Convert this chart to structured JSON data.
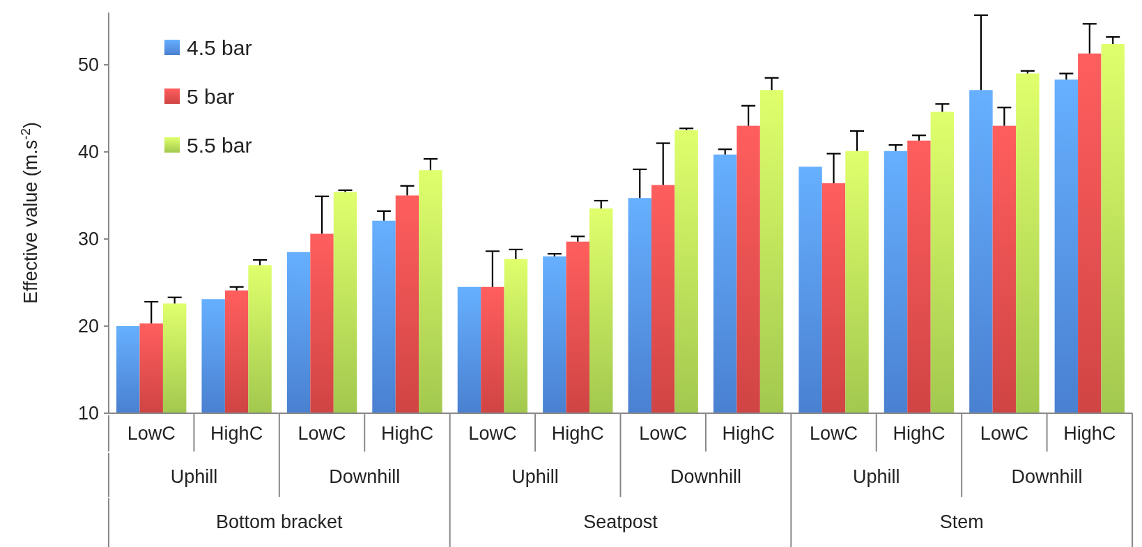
{
  "chart_data": {
    "type": "bar",
    "ylabel": "Effective value (m.s$^{-2}$)",
    "categories": [
      "LowC",
      "HighC",
      "LowC",
      "HighC",
      "LowC",
      "HighC",
      "LowC",
      "HighC",
      "LowC",
      "HighC",
      "LowC",
      "HighC"
    ],
    "annotations": [
      "Uphill",
      "Downhill",
      "Uphill",
      "Downhill",
      "Uphill",
      "Downhill",
      "Bottom bracket",
      "Seatpost",
      "Stem"
    ],
    "series": [
      {
        "name": "4.5 bar",
        "color": "#4a80d0",
        "values": [
          20.0,
          23.1,
          28.5,
          32.1,
          24.5,
          28.0,
          34.7,
          39.7,
          38.3,
          40.1,
          47.1,
          48.3
        ],
        "errors": [
          null,
          null,
          null,
          [
            32.1,
            33.2
          ],
          null,
          [
            28.0,
            28.3
          ],
          [
            34.7,
            38.0
          ],
          [
            39.7,
            40.3
          ],
          null,
          [
            40.1,
            40.8
          ],
          [
            47.1,
            55.7
          ],
          [
            48.3,
            49.0
          ]
        ]
      },
      {
        "name": "5 bar",
        "color": "#d04444",
        "values": [
          20.3,
          24.1,
          30.6,
          35.0,
          24.5,
          29.7,
          36.2,
          43.0,
          36.4,
          41.3,
          43.0,
          51.3
        ],
        "errors": [
          [
            20.3,
            22.8
          ],
          [
            24.1,
            24.5
          ],
          [
            30.6,
            34.9
          ],
          [
            35.0,
            36.1
          ],
          [
            24.5,
            28.6
          ],
          [
            29.7,
            30.3
          ],
          [
            36.2,
            41.0
          ],
          [
            43.0,
            45.3
          ],
          [
            36.4,
            39.8
          ],
          [
            41.3,
            41.9
          ],
          [
            43.0,
            45.1
          ],
          [
            51.3,
            54.7
          ]
        ]
      },
      {
        "name": "5.5 bar",
        "color": "#a2c84e",
        "values": [
          22.6,
          27.0,
          35.4,
          37.9,
          27.7,
          33.5,
          42.5,
          47.1,
          40.1,
          44.6,
          49.0,
          52.4
        ],
        "errors": [
          [
            22.6,
            23.3
          ],
          [
            27.0,
            27.6
          ],
          [
            35.4,
            35.6
          ],
          [
            37.9,
            39.2
          ],
          [
            27.7,
            28.8
          ],
          [
            33.5,
            34.4
          ],
          [
            42.5,
            42.7
          ],
          [
            47.1,
            48.5
          ],
          [
            40.1,
            42.4
          ],
          [
            44.6,
            45.5
          ],
          [
            49.0,
            49.3
          ],
          [
            52.4,
            53.2
          ]
        ]
      }
    ],
    "ylim": [
      10,
      56
    ],
    "yticks": [
      10,
      20,
      30,
      40,
      50
    ],
    "legend": "top left"
  }
}
